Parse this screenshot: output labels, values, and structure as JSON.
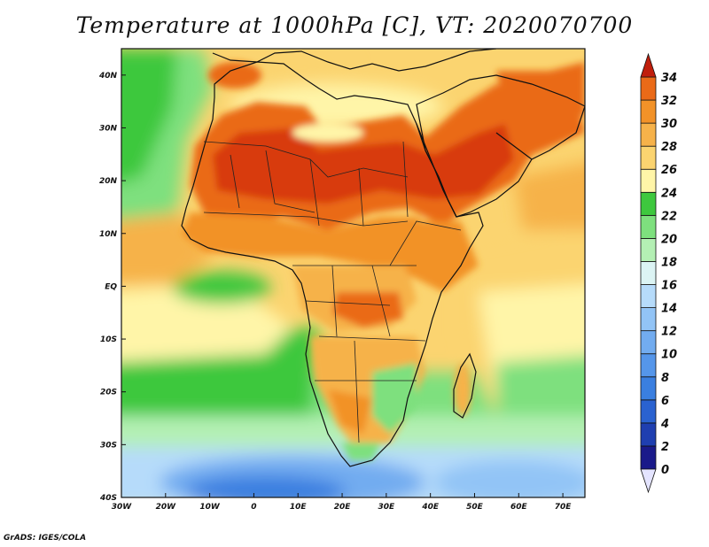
{
  "title": "Temperature at 1000hPa [C], VT: 2020070700",
  "credit": "GrADS: IGES/COLA",
  "map": {
    "lat_labels": [
      {
        "lat": 40,
        "text": "40N"
      },
      {
        "lat": 30,
        "text": "30N"
      },
      {
        "lat": 20,
        "text": "20N"
      },
      {
        "lat": 10,
        "text": "10N"
      },
      {
        "lat": 0,
        "text": "EQ"
      },
      {
        "lat": -10,
        "text": "10S"
      },
      {
        "lat": -20,
        "text": "20S"
      },
      {
        "lat": -30,
        "text": "30S"
      },
      {
        "lat": -40,
        "text": "40S"
      }
    ],
    "lon_labels": [
      {
        "lon": -30,
        "text": "30W"
      },
      {
        "lon": -20,
        "text": "20W"
      },
      {
        "lon": -10,
        "text": "10W"
      },
      {
        "lon": 0,
        "text": "0"
      },
      {
        "lon": 10,
        "text": "10E"
      },
      {
        "lon": 20,
        "text": "20E"
      },
      {
        "lon": 30,
        "text": "30E"
      },
      {
        "lon": 40,
        "text": "40E"
      },
      {
        "lon": 50,
        "text": "50E"
      },
      {
        "lon": 60,
        "text": "60E"
      },
      {
        "lon": 70,
        "text": "70E"
      }
    ]
  },
  "colorbar": {
    "levels": [
      {
        "value": "0",
        "color": "#1a1a8a"
      },
      {
        "value": "2",
        "color": "#1f3fb0"
      },
      {
        "value": "4",
        "color": "#2a62d0"
      },
      {
        "value": "6",
        "color": "#3a7fe0"
      },
      {
        "value": "8",
        "color": "#5596ea"
      },
      {
        "value": "10",
        "color": "#72acf0"
      },
      {
        "value": "12",
        "color": "#92c4f6"
      },
      {
        "value": "14",
        "color": "#b6dbfa"
      },
      {
        "value": "16",
        "color": "#dcf4f4"
      },
      {
        "value": "18",
        "color": "#b4f0b4"
      },
      {
        "value": "20",
        "color": "#7ee07e"
      },
      {
        "value": "22",
        "color": "#3ec83e"
      },
      {
        "value": "24",
        "color": "#fff5a8"
      },
      {
        "value": "26",
        "color": "#fbd470"
      },
      {
        "value": "28",
        "color": "#f6b24a"
      },
      {
        "value": "30",
        "color": "#f29228"
      },
      {
        "value": "32",
        "color": "#ea6a18"
      },
      {
        "value": "34",
        "color": "#d83a10"
      }
    ],
    "top_color": "#c01e0c",
    "bottom_color": "#e4e4ff"
  }
}
